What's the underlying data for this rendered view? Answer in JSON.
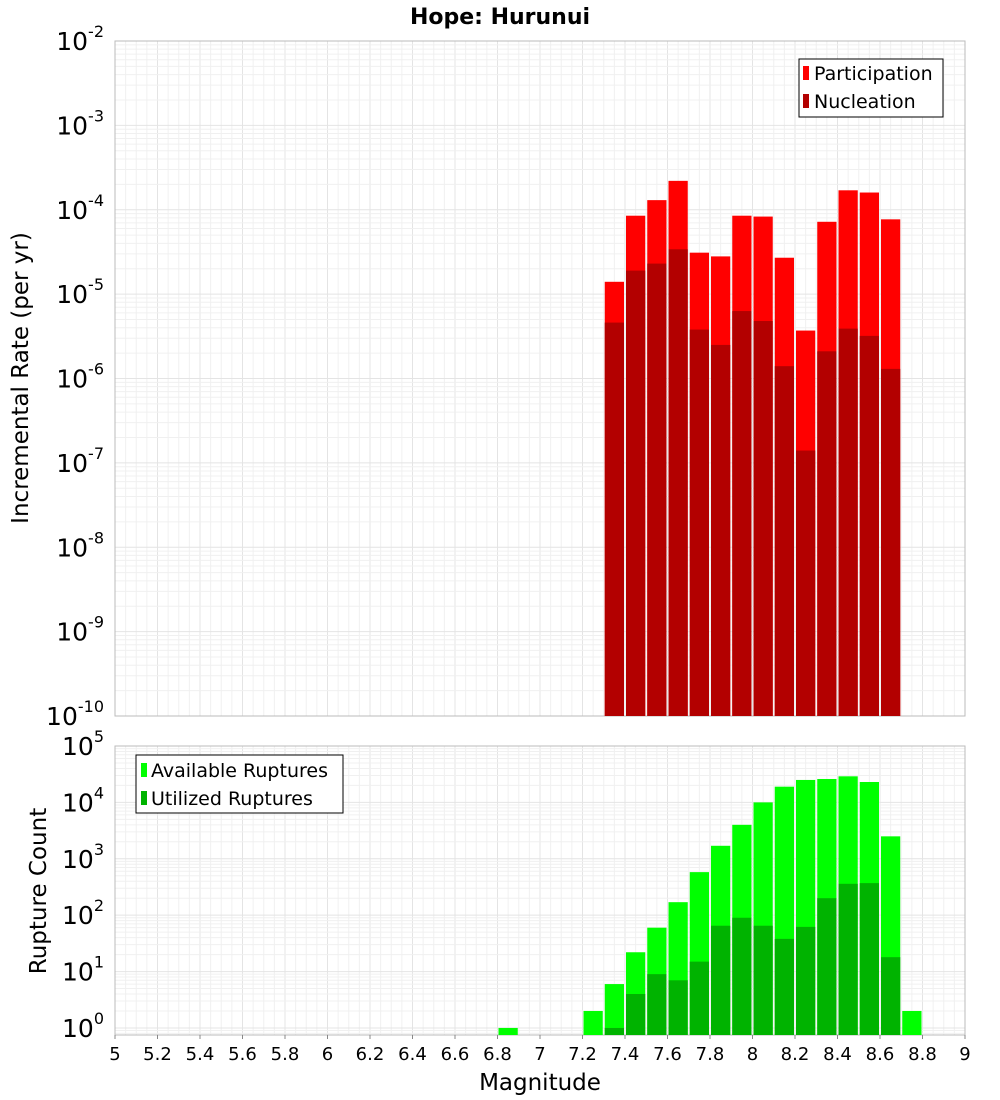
{
  "chart_data": [
    {
      "type": "bar",
      "title": "Hope: Hurunui",
      "xlabel": "",
      "ylabel": "Incremental Rate (per yr)",
      "yscale": "log",
      "ylim": [
        1e-10,
        0.01
      ],
      "xlim": [
        5,
        9
      ],
      "grid": true,
      "stacked_overlay": true,
      "legend_position": "top-right",
      "ytick_labels": [
        {
          "base": "10",
          "exp": "-10"
        },
        {
          "base": "10",
          "exp": "-9"
        },
        {
          "base": "10",
          "exp": "-8"
        },
        {
          "base": "10",
          "exp": "-7"
        },
        {
          "base": "10",
          "exp": "-6"
        },
        {
          "base": "10",
          "exp": "-5"
        },
        {
          "base": "10",
          "exp": "-4"
        },
        {
          "base": "10",
          "exp": "-3"
        },
        {
          "base": "10",
          "exp": "-2"
        }
      ],
      "x": [
        7.35,
        7.45,
        7.55,
        7.65,
        7.75,
        7.85,
        7.95,
        8.05,
        8.15,
        8.25,
        8.35,
        8.45,
        8.55,
        8.65
      ],
      "series": [
        {
          "name": "Participation",
          "color": "#ff0000",
          "values": [
            1.4e-05,
            8.5e-05,
            0.00013,
            0.00022,
            3.1e-05,
            2.8e-05,
            8.5e-05,
            8.3e-05,
            2.7e-05,
            3.7e-06,
            7.2e-05,
            0.00017,
            0.00016,
            7.7e-05
          ]
        },
        {
          "name": "Nucleation",
          "color": "#b30000",
          "values": [
            4.6e-06,
            1.9e-05,
            2.3e-05,
            3.4e-05,
            3.8e-06,
            2.5e-06,
            6.3e-06,
            4.8e-06,
            1.4e-06,
            1.4e-07,
            2.1e-06,
            3.9e-06,
            3.2e-06,
            1.3e-06
          ]
        }
      ]
    },
    {
      "type": "bar",
      "title": "",
      "xlabel": "Magnitude",
      "ylabel": "Rupture Count",
      "yscale": "log",
      "ylim": [
        0.75,
        100000.0
      ],
      "xlim": [
        5,
        9
      ],
      "grid": true,
      "stacked_overlay": true,
      "legend_position": "top-left",
      "ytick_labels": [
        {
          "base": "10",
          "exp": "0"
        },
        {
          "base": "10",
          "exp": "1"
        },
        {
          "base": "10",
          "exp": "2"
        },
        {
          "base": "10",
          "exp": "3"
        },
        {
          "base": "10",
          "exp": "4"
        },
        {
          "base": "10",
          "exp": "5"
        }
      ],
      "xtick_labels": [
        "5",
        "5.2",
        "5.4",
        "5.6",
        "5.8",
        "6",
        "6.2",
        "6.4",
        "6.6",
        "6.8",
        "7",
        "7.2",
        "7.4",
        "7.6",
        "7.8",
        "8",
        "8.2",
        "8.4",
        "8.6",
        "8.8",
        "9"
      ],
      "x": [
        6.85,
        7.25,
        7.35,
        7.45,
        7.55,
        7.65,
        7.75,
        7.85,
        7.95,
        8.05,
        8.15,
        8.25,
        8.35,
        8.45,
        8.55,
        8.65,
        8.75
      ],
      "series": [
        {
          "name": "Available Ruptures",
          "color": "#00ff00",
          "values": [
            1,
            2,
            6,
            22,
            60,
            170,
            580,
            1700,
            4000,
            10000,
            19000,
            25000,
            26000,
            29000,
            23000,
            2500,
            2
          ]
        },
        {
          "name": "Utilized Ruptures",
          "color": "#00b300",
          "values": [
            null,
            null,
            1,
            4,
            9,
            7,
            15,
            65,
            90,
            65,
            38,
            62,
            200,
            360,
            370,
            18,
            null
          ]
        }
      ]
    }
  ]
}
